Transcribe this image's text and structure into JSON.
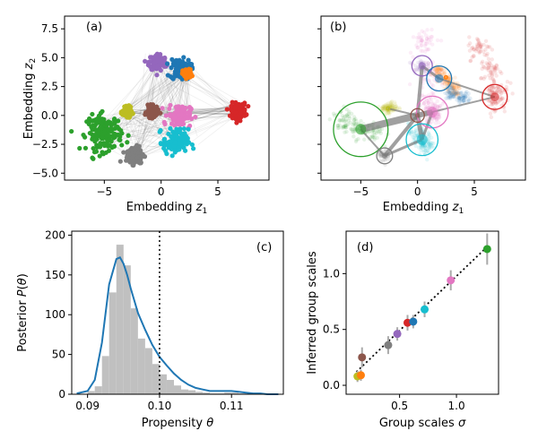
{
  "colors": {
    "blue": "#1f77b4",
    "orange": "#ff7f0e",
    "green": "#2ca02c",
    "red": "#d62728",
    "purple": "#9467bd",
    "brown": "#8c564b",
    "pink": "#e377c2",
    "gray": "#7f7f7f",
    "olive": "#bcbd22",
    "cyan": "#17becf",
    "hist": "#c0c0c0",
    "kde": "#1f77b4"
  },
  "chart_data": [
    {
      "panel": "(a)",
      "type": "scatter",
      "xlabel": "Embedding z₁",
      "ylabel": "Embedding z₂",
      "xlim": [
        -8.5,
        9.5
      ],
      "ylim": [
        -5.6,
        8.6
      ],
      "xticks": [
        -5,
        0,
        5
      ],
      "yticks": [
        -5.0,
        -2.5,
        0.0,
        2.5,
        5.0,
        7.5
      ],
      "ytick_labels": [
        "−5.0",
        "−2.5",
        "0.0",
        "2.5",
        "5.0",
        "7.5"
      ],
      "xtick_labels": [
        "−5",
        "0",
        "5"
      ],
      "clusters": [
        {
          "color": "purple",
          "center": [
            -0.3,
            4.6
          ],
          "spread": 0.7
        },
        {
          "color": "blue",
          "center": [
            1.7,
            4.0
          ],
          "spread": 0.8
        },
        {
          "color": "orange",
          "center": [
            2.3,
            3.6
          ],
          "spread": 0.35
        },
        {
          "color": "red",
          "center": [
            6.8,
            0.4
          ],
          "spread": 0.6
        },
        {
          "color": "green",
          "center": [
            -5.0,
            -1.5
          ],
          "spread": 1.4
        },
        {
          "color": "olive",
          "center": [
            -3.0,
            0.3
          ],
          "spread": 0.35
        },
        {
          "color": "brown",
          "center": [
            -0.8,
            0.3
          ],
          "spread": 0.45
        },
        {
          "color": "pink",
          "center": [
            1.6,
            0.0
          ],
          "spread": 0.9
        },
        {
          "color": "cyan",
          "center": [
            1.3,
            -2.3
          ],
          "spread": 1.0
        },
        {
          "color": "gray",
          "center": [
            -2.3,
            -3.4
          ],
          "spread": 0.7
        }
      ]
    },
    {
      "panel": "(b)",
      "type": "scatter",
      "xlabel": "Embedding z₁",
      "xlim": [
        -8.5,
        9.5
      ],
      "ylim": [
        -5.6,
        8.6
      ],
      "xticks": [
        -5,
        0,
        5
      ],
      "xtick_labels": [
        "−5",
        "0",
        "5"
      ],
      "group_circles": [
        {
          "color": "green",
          "center": [
            -5.0,
            -1.2
          ],
          "radius": 2.4
        },
        {
          "color": "purple",
          "center": [
            0.4,
            4.3
          ],
          "radius": 0.9
        },
        {
          "color": "blue",
          "center": [
            1.9,
            3.2
          ],
          "radius": 1.1
        },
        {
          "color": "red",
          "center": [
            6.8,
            1.6
          ],
          "radius": 1.1
        },
        {
          "color": "pink",
          "center": [
            1.3,
            0.3
          ],
          "radius": 1.4
        },
        {
          "color": "brown",
          "center": [
            0.0,
            0.0
          ],
          "radius": 0.6
        },
        {
          "color": "cyan",
          "center": [
            0.4,
            -2.1
          ],
          "radius": 1.4
        },
        {
          "color": "gray",
          "center": [
            -2.9,
            -3.5
          ],
          "radius": 0.7
        },
        {
          "color": "olive",
          "center": [
            -2.6,
            0.6
          ],
          "radius": 0.15
        },
        {
          "color": "orange",
          "center": [
            2.5,
            3.3
          ],
          "radius": 0.15
        }
      ]
    },
    {
      "panel": "(c)",
      "type": "bar",
      "xlabel": "Propensity θ",
      "ylabel": "Posterior P(θ)",
      "xlim": [
        0.0878,
        0.1172
      ],
      "ylim": [
        0,
        205
      ],
      "xticks": [
        0.09,
        0.1,
        0.11
      ],
      "xtick_labels": [
        "0.09",
        "0.10",
        "0.11"
      ],
      "yticks": [
        0,
        50,
        100,
        150,
        200
      ],
      "vline": 0.1,
      "hist_bins": [
        0.09,
        0.091,
        0.092,
        0.093,
        0.094,
        0.095,
        0.096,
        0.097,
        0.098,
        0.099,
        0.1,
        0.101,
        0.102,
        0.103,
        0.104,
        0.105,
        0.106,
        0.107,
        0.108,
        0.109,
        0.11,
        0.111,
        0.112,
        0.113,
        0.114,
        0.115
      ],
      "hist_values": [
        4,
        10,
        48,
        128,
        188,
        162,
        108,
        70,
        58,
        38,
        25,
        18,
        11,
        6,
        5,
        3,
        2,
        1,
        1,
        2,
        2,
        1,
        0,
        1,
        0
      ],
      "kde_x": [
        0.0885,
        0.09,
        0.091,
        0.092,
        0.093,
        0.094,
        0.0945,
        0.095,
        0.0955,
        0.096,
        0.097,
        0.098,
        0.099,
        0.1,
        0.101,
        0.102,
        0.103,
        0.104,
        0.105,
        0.106,
        0.107,
        0.108,
        0.109,
        0.11,
        0.111,
        0.112,
        0.113,
        0.114,
        0.115,
        0.1165
      ],
      "kde_y": [
        1,
        4,
        18,
        65,
        138,
        170,
        172,
        164,
        150,
        133,
        102,
        81,
        62,
        47,
        36,
        26,
        18,
        12,
        8,
        6,
        4,
        4,
        4,
        4,
        3,
        2,
        1,
        1,
        0,
        0
      ]
    },
    {
      "panel": "(d)",
      "type": "scatter",
      "xlabel": "Group scales σ",
      "ylabel": "Inferred group scales",
      "xlim": [
        0.03,
        1.37
      ],
      "ylim": [
        -0.08,
        1.38
      ],
      "xticks": [
        0.5,
        1.0
      ],
      "xtick_labels": [
        "0.5",
        "1.0"
      ],
      "yticks": [
        0.0,
        0.5,
        1.0
      ],
      "yticks_labels": [
        "0.0",
        "0.5",
        "1.0"
      ],
      "fit_line": [
        [
          0.12,
          0.12
        ],
        [
          1.28,
          1.25
        ]
      ],
      "points": [
        {
          "color": "olive",
          "x": 0.13,
          "y": 0.08,
          "err": 0.05
        },
        {
          "color": "orange",
          "x": 0.16,
          "y": 0.09,
          "err": 0.05
        },
        {
          "color": "brown",
          "x": 0.17,
          "y": 0.25,
          "err": 0.09
        },
        {
          "color": "gray",
          "x": 0.4,
          "y": 0.36,
          "err": 0.08
        },
        {
          "color": "purple",
          "x": 0.48,
          "y": 0.46,
          "err": 0.06
        },
        {
          "color": "red",
          "x": 0.57,
          "y": 0.56,
          "err": 0.07
        },
        {
          "color": "blue",
          "x": 0.62,
          "y": 0.57,
          "err": 0.06
        },
        {
          "color": "cyan",
          "x": 0.72,
          "y": 0.68,
          "err": 0.07
        },
        {
          "color": "pink",
          "x": 0.95,
          "y": 0.94,
          "err": 0.09
        },
        {
          "color": "green",
          "x": 1.27,
          "y": 1.22,
          "err": 0.14
        }
      ]
    }
  ]
}
